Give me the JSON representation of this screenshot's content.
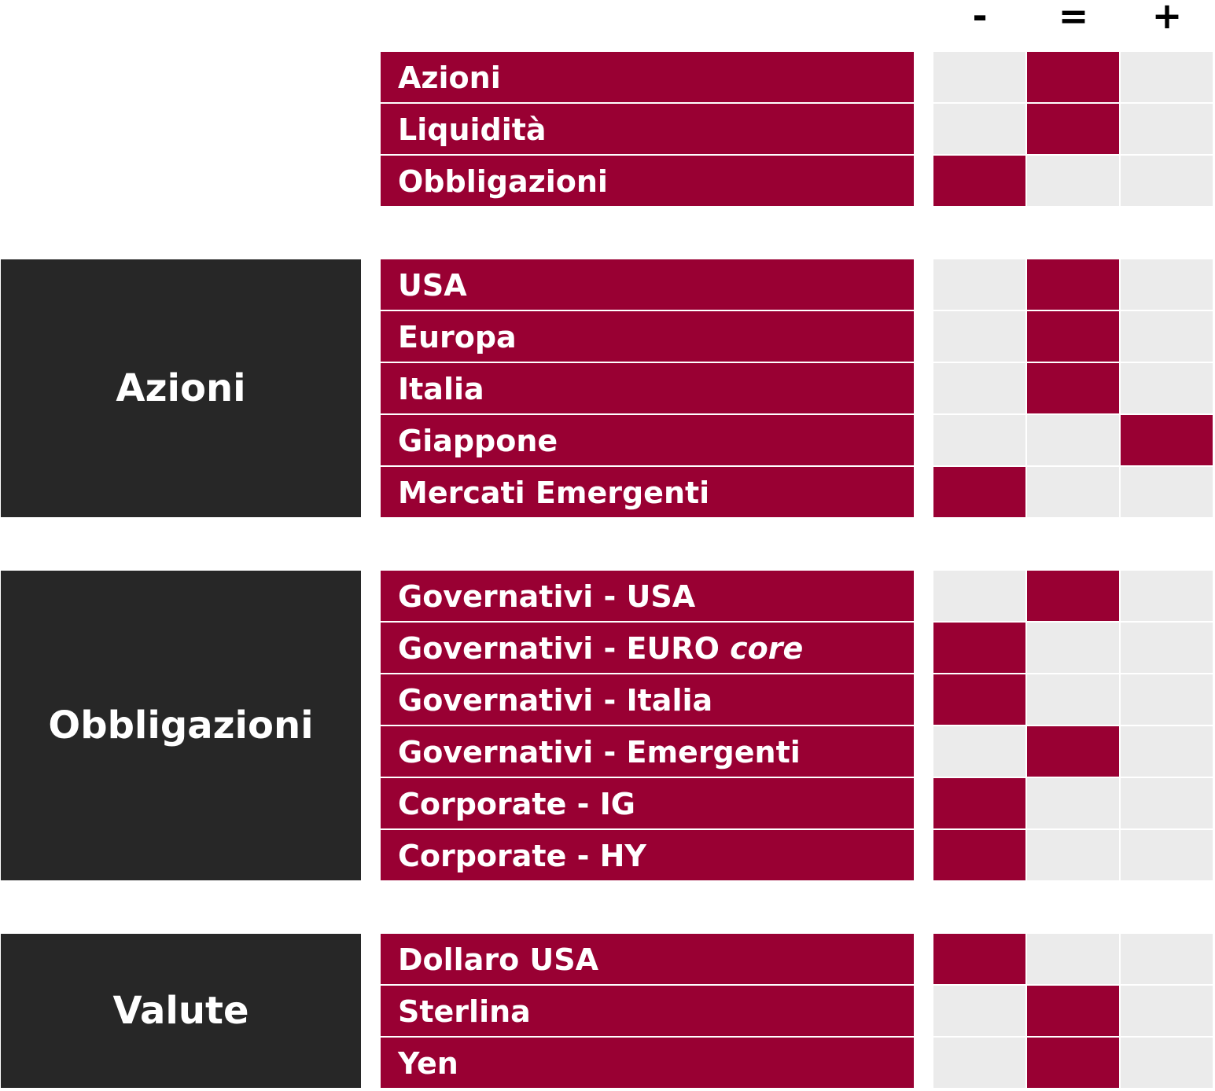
{
  "header": {
    "columns": [
      {
        "symbol": "-",
        "name": "negative"
      },
      {
        "symbol": "=",
        "name": "neutral"
      },
      {
        "symbol": "+",
        "name": "positive"
      }
    ]
  },
  "colors": {
    "accent": "#990033",
    "category_bg": "#272727",
    "empty_cell": "#ebebeb",
    "text_light": "#ffffff"
  },
  "sections": [
    {
      "category": "",
      "rows": [
        {
          "label": "Azioni",
          "label_italic": "",
          "rating": "="
        },
        {
          "label": "Liquidità",
          "label_italic": "",
          "rating": "="
        },
        {
          "label": "Obbligazioni",
          "label_italic": "",
          "rating": "-"
        }
      ]
    },
    {
      "category": "Azioni",
      "rows": [
        {
          "label": "USA",
          "label_italic": "",
          "rating": "="
        },
        {
          "label": "Europa",
          "label_italic": "",
          "rating": "="
        },
        {
          "label": "Italia",
          "label_italic": "",
          "rating": "="
        },
        {
          "label": "Giappone",
          "label_italic": "",
          "rating": "+"
        },
        {
          "label": "Mercati Emergenti",
          "label_italic": "",
          "rating": "-"
        }
      ]
    },
    {
      "category": "Obbligazioni",
      "rows": [
        {
          "label": "Governativi - USA",
          "label_italic": "",
          "rating": "="
        },
        {
          "label": "Governativi - EURO ",
          "label_italic": "core",
          "rating": "-"
        },
        {
          "label": "Governativi - Italia",
          "label_italic": "",
          "rating": "-"
        },
        {
          "label": "Governativi - Emergenti",
          "label_italic": "",
          "rating": "="
        },
        {
          "label": "Corporate - IG",
          "label_italic": "",
          "rating": "-"
        },
        {
          "label": "Corporate - HY",
          "label_italic": "",
          "rating": "-"
        }
      ]
    },
    {
      "category": "Valute",
      "rows": [
        {
          "label": "Dollaro USA",
          "label_italic": "",
          "rating": "-"
        },
        {
          "label": "Sterlina",
          "label_italic": "",
          "rating": "="
        },
        {
          "label": "Yen",
          "label_italic": "",
          "rating": "="
        }
      ]
    }
  ]
}
